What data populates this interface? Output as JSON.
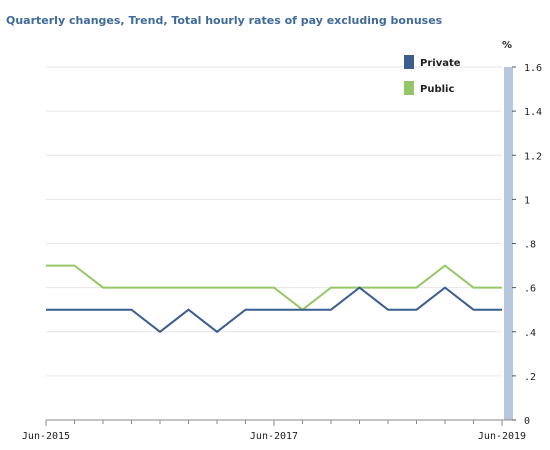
{
  "chart_data": {
    "type": "line",
    "title": "Quarterly changes, Trend, Total hourly rates of pay excluding bonuses",
    "yunit": "%",
    "xlabel": "",
    "ylabel": "",
    "ylim": [
      0,
      1.6
    ],
    "yticks": [
      "0",
      ".2",
      ".4",
      ".6",
      ".8",
      "1",
      "1.2",
      "1.4",
      "1.6"
    ],
    "yaxis_position": "right",
    "grid": true,
    "legend_position": "top-right",
    "x": [
      "Jun-2015",
      "Sep-2015",
      "Dec-2015",
      "Mar-2016",
      "Jun-2016",
      "Sep-2016",
      "Dec-2016",
      "Mar-2017",
      "Jun-2017",
      "Sep-2017",
      "Dec-2017",
      "Mar-2018",
      "Jun-2018",
      "Sep-2018",
      "Dec-2018",
      "Mar-2019",
      "Jun-2019"
    ],
    "xtick_labels": [
      "Jun-2015",
      "Jun-2017",
      "Jun-2019"
    ],
    "series": [
      {
        "name": "Private",
        "color": "#3b5d8f",
        "values": [
          0.5,
          0.5,
          0.5,
          0.5,
          0.4,
          0.5,
          0.4,
          0.5,
          0.5,
          0.5,
          0.5,
          0.6,
          0.5,
          0.5,
          0.6,
          0.5,
          0.5
        ]
      },
      {
        "name": "Public",
        "color": "#96c765",
        "values": [
          0.7,
          0.7,
          0.6,
          0.6,
          0.6,
          0.6,
          0.6,
          0.6,
          0.6,
          0.5,
          0.6,
          0.6,
          0.6,
          0.6,
          0.7,
          0.6,
          0.6
        ]
      }
    ],
    "axis_band_color": "#b8c8dc"
  }
}
